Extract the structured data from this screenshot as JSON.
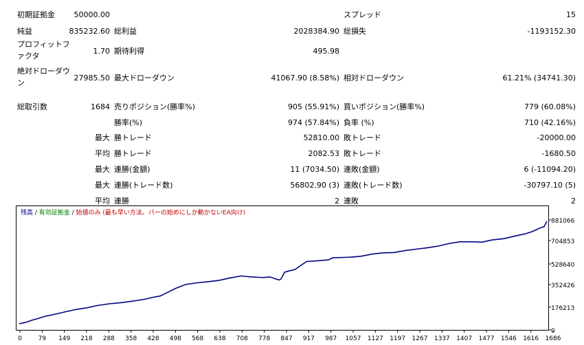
{
  "stats": [
    {
      "id": "initial-deposit",
      "label": "初期証拠金",
      "value": "50000.00"
    },
    {
      "id": "spread",
      "label": "スプレッド",
      "value": "15"
    },
    {
      "id": "net-profit",
      "label": "純益",
      "value": "835232.60"
    },
    {
      "id": "gross-profit",
      "label": "総利益",
      "value": "2028384.90"
    },
    {
      "id": "gross-loss",
      "label": "総損失",
      "value": "-1193152.30"
    },
    {
      "id": "profit-factor",
      "label_lines": [
        "プロフィットフ",
        "ァクタ"
      ],
      "value": "1.70"
    },
    {
      "id": "expected-payoff",
      "label": "期待利得",
      "value": "495.98"
    },
    {
      "id": "absolute-drawdown",
      "label_lines": [
        "絶対ドローダウ",
        "ン"
      ],
      "value": "27985.50"
    },
    {
      "id": "maximal-drawdown",
      "label": "最大ドローダウン",
      "value": "41067.90 (8.58%)"
    },
    {
      "id": "relative-drawdown",
      "label": "相対ドローダウン",
      "value": "61.21% (34741.30)"
    },
    {
      "id": "total-trades",
      "label": "総取引数",
      "value": "1684"
    },
    {
      "id": "short-positions",
      "label": "売りポジション(勝率%)",
      "value": "905 (55.91%)"
    },
    {
      "id": "long-positions",
      "label": "買いポジション(勝率%)",
      "value": "779 (60.08%)"
    },
    {
      "id": "profit-trades",
      "label": "勝率(%)",
      "value": "974 (57.84%)"
    },
    {
      "id": "loss-trades",
      "label": "負率 (%)",
      "value": "710 (42.16%)"
    },
    {
      "id": "largest-profit-trade",
      "prefix": "最大",
      "label": "勝トレード",
      "value": "52810.00"
    },
    {
      "id": "largest-loss-trade",
      "label": "敗トレード",
      "value": "-20000.00"
    },
    {
      "id": "average-profit-trade",
      "prefix": "平均",
      "label": "勝トレード",
      "value": "2082.53"
    },
    {
      "id": "average-loss-trade",
      "label": "敗トレード",
      "value": "-1680.50"
    },
    {
      "id": "max-consecutive-wins",
      "prefix": "最大",
      "label": "連勝(金額)",
      "value": "11 (7034.50)"
    },
    {
      "id": "max-consecutive-losses",
      "label": "連敗(金額)",
      "value": "6 (-11094.20)"
    },
    {
      "id": "max-consecutive-profit",
      "prefix": "最大",
      "label": "連勝(トレード数)",
      "value": "56802.90 (3)"
    },
    {
      "id": "max-consecutive-loss",
      "label": "連敗(トレード数)",
      "value": "-30797.10 (5)"
    },
    {
      "id": "average-consecutive-wins",
      "prefix": "平均",
      "label": "連勝",
      "value": "2"
    },
    {
      "id": "average-consecutive-losses",
      "label": "連敗",
      "value": "2"
    }
  ],
  "chart_data": {
    "type": "line",
    "legend": {
      "items": [
        {
          "text": "残高",
          "color": "#000080"
        },
        {
          "text": " / ",
          "color": "#000000"
        },
        {
          "text": "有効証拠金",
          "color": "#008000"
        },
        {
          "text": " / ",
          "color": "#000000"
        },
        {
          "text": "始値のみ (最も早い方法。バーの始めにしか動かないEA向け)",
          "color": "#c00000"
        }
      ],
      "placement": "top-left"
    },
    "line_color": "#000080",
    "x_ticks": [
      "0",
      "79",
      "149",
      "218",
      "288",
      "358",
      "428",
      "498",
      "568",
      "638",
      "708",
      "778",
      "847",
      "917",
      "987",
      "1057",
      "1127",
      "1197",
      "1267",
      "1337",
      "1407",
      "1477",
      "1546",
      "1616",
      "1686"
    ],
    "y_ticks": [
      "0",
      "176213",
      "352426",
      "528640",
      "704853",
      "881066"
    ],
    "ylim": [
      0,
      881066
    ],
    "xlim": [
      0,
      1684
    ],
    "series": [
      {
        "x": [
          0,
          20,
          40,
          60,
          79,
          110,
          149,
          180,
          218,
          250,
          288,
          330,
          358,
          400,
          428,
          450,
          470,
          498,
          530,
          568,
          600,
          638,
          670,
          708,
          740,
          778,
          800,
          820,
          830,
          835,
          847,
          860,
          880,
          917,
          950,
          987,
          1000,
          1057,
          1090,
          1127,
          1160,
          1197,
          1230,
          1267,
          1300,
          1337,
          1370,
          1407,
          1440,
          1477,
          1510,
          1546,
          1580,
          1616,
          1640,
          1660,
          1675,
          1684
        ],
        "y": [
          50000,
          60000,
          78000,
          92000,
          108000,
          125000,
          148000,
          165000,
          180000,
          198000,
          212000,
          222000,
          232000,
          248000,
          265000,
          275000,
          300000,
          335000,
          368000,
          382000,
          390000,
          402000,
          420000,
          438000,
          430000,
          425000,
          430000,
          412000,
          405000,
          412000,
          468000,
          478000,
          490000,
          555000,
          560000,
          568000,
          585000,
          590000,
          597000,
          615000,
          625000,
          628000,
          643000,
          655000,
          665000,
          680000,
          700000,
          715000,
          715000,
          712000,
          730000,
          740000,
          760000,
          780000,
          800000,
          825000,
          838000,
          881066
        ]
      }
    ]
  }
}
